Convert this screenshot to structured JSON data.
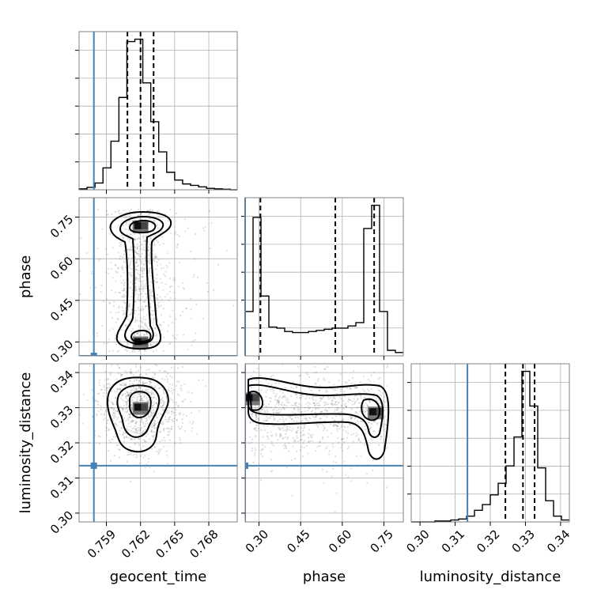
{
  "colors": {
    "truth": "#4682b4",
    "grid": "#b0b0b0",
    "frame": "#808080",
    "ink": "#000000"
  },
  "chart_data": {
    "type": "corner",
    "parameters": [
      {
        "name": "geocent_time",
        "range": [
          0.7566,
          0.7705
        ],
        "ticks": [
          0.759,
          0.762,
          0.765,
          0.768
        ],
        "tick_labels": [
          "0.759",
          "0.762",
          "0.765",
          "0.768"
        ],
        "truth": 0.7579
      },
      {
        "name": "phase",
        "range": [
          0.25,
          0.82
        ],
        "ticks": [
          0.3,
          0.45,
          0.6,
          0.75
        ],
        "tick_labels": [
          "0.30",
          "0.45",
          "0.60",
          "0.75"
        ],
        "truth": 0.25
      },
      {
        "name": "luminosity_distance",
        "range": [
          0.2975,
          0.3425
        ],
        "ticks": [
          0.3,
          0.31,
          0.32,
          0.33,
          0.34
        ],
        "tick_labels": [
          "0.30",
          "0.31",
          "0.32",
          "0.33",
          "0.34"
        ],
        "truth": 0.3135
      }
    ],
    "marginals": [
      {
        "parameter": "geocent_time",
        "bin_edges": [
          0.7566,
          0.7573,
          0.758,
          0.7587,
          0.7594,
          0.7601,
          0.7608,
          0.7615,
          0.7622,
          0.7629,
          0.7636,
          0.7643,
          0.765,
          0.7657,
          0.7664,
          0.7671,
          0.7678,
          0.7685,
          0.7692,
          0.7699,
          0.7705
        ],
        "counts": [
          2,
          5,
          14,
          45,
          100,
          190,
          305,
          310,
          220,
          140,
          78,
          36,
          20,
          12,
          9,
          6,
          3,
          2,
          1,
          0
        ],
        "quantiles": [
          0.76085,
          0.762,
          0.76315
        ]
      },
      {
        "parameter": "phase",
        "bin_edges": [
          0.25,
          0.2785,
          0.307,
          0.3355,
          0.364,
          0.3925,
          0.421,
          0.4495,
          0.478,
          0.5065,
          0.535,
          0.5635,
          0.592,
          0.6205,
          0.649,
          0.6775,
          0.706,
          0.7345,
          0.763,
          0.7915,
          0.82
        ],
        "counts": [
          40,
          125,
          54,
          26,
          25,
          22,
          21,
          21,
          22,
          23,
          24,
          25,
          25,
          27,
          30,
          115,
          136,
          40,
          5,
          3
        ],
        "quantiles": [
          0.305,
          0.575,
          0.715
        ]
      },
      {
        "parameter": "luminosity_distance",
        "bin_edges": [
          0.2975,
          0.29975,
          0.302,
          0.30425,
          0.3065,
          0.30875,
          0.311,
          0.31325,
          0.3155,
          0.31775,
          0.32,
          0.32225,
          0.3245,
          0.32675,
          0.329,
          0.33125,
          0.3335,
          0.33575,
          0.338,
          0.34025,
          0.3425
        ],
        "counts": [
          0,
          0,
          0,
          1,
          1,
          2,
          3,
          6,
          12,
          18,
          28,
          40,
          58,
          88,
          156,
          120,
          56,
          22,
          6,
          2
        ],
        "quantiles": [
          0.3243,
          0.3293,
          0.3326
        ]
      }
    ],
    "pairs": [
      {
        "x": "geocent_time",
        "y": "phase",
        "modes": [
          {
            "x": 0.762,
            "y": 0.715
          },
          {
            "x": 0.762,
            "y": 0.297
          }
        ]
      },
      {
        "x": "geocent_time",
        "y": "luminosity_distance",
        "modes": [
          {
            "x": 0.762,
            "y": 0.3298
          }
        ]
      },
      {
        "x": "phase",
        "y": "luminosity_distance",
        "modes": [
          {
            "x": 0.275,
            "y": 0.3325
          },
          {
            "x": 0.72,
            "y": 0.3285
          }
        ]
      }
    ],
    "grid": true
  }
}
